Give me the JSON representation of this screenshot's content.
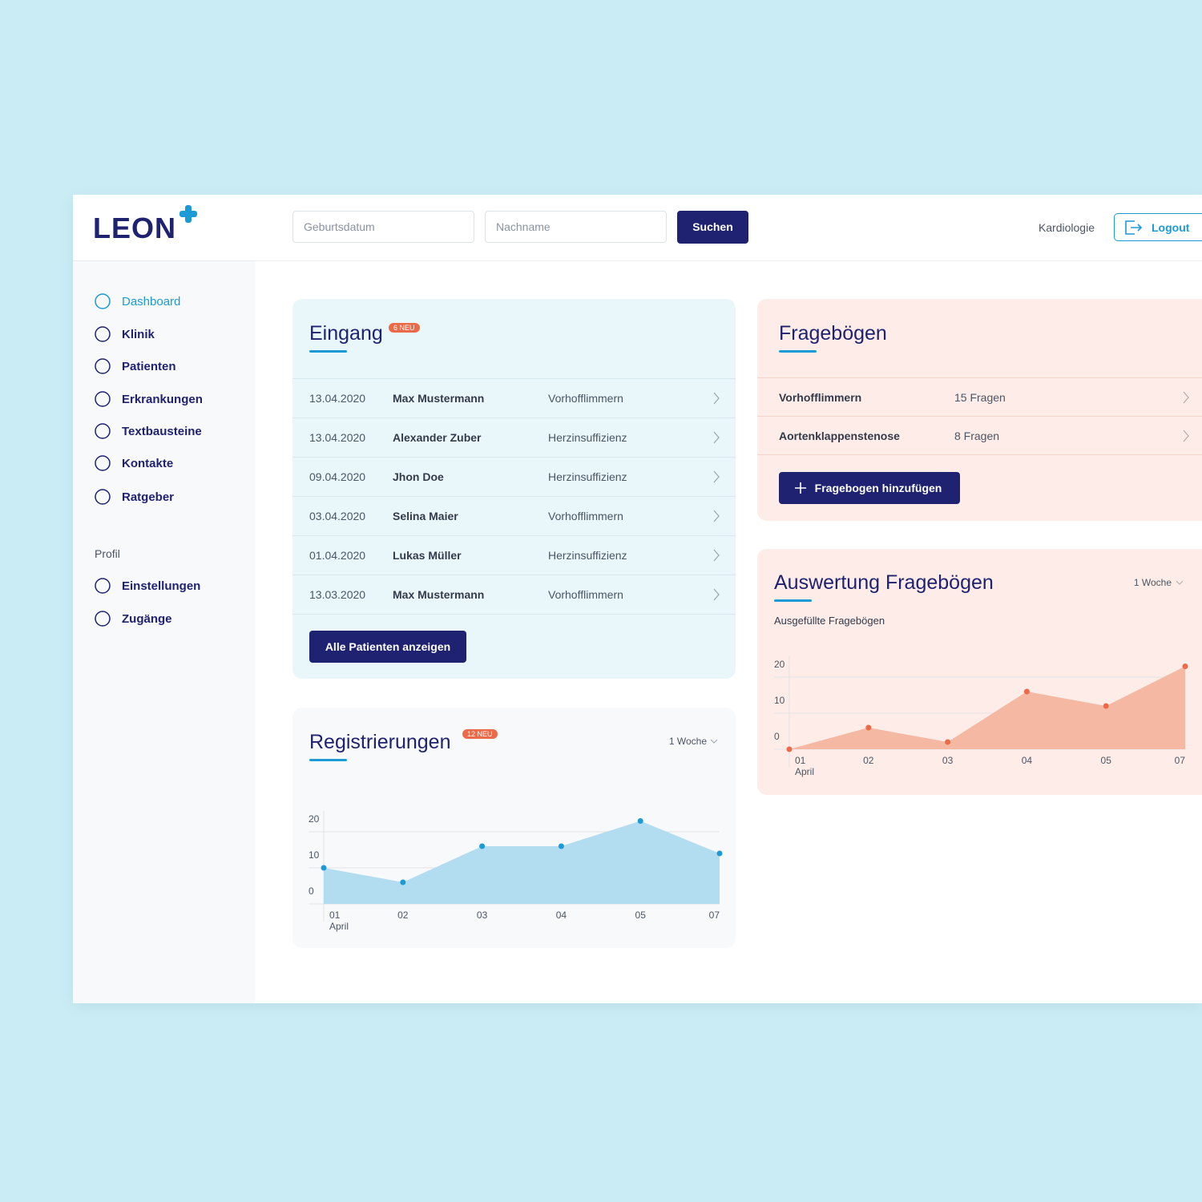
{
  "header": {
    "logo": "LEON",
    "search_fields": [
      "Geburtsdatum",
      "Nachname"
    ],
    "search_button": "Suchen",
    "department": "Kardiologie",
    "logout": "Logout"
  },
  "sidebar": {
    "nav": [
      "Dashboard",
      "Klinik",
      "Patienten",
      "Erkrankungen",
      "Textbausteine",
      "Kontakte",
      "Ratgeber"
    ],
    "profile_heading": "Profil",
    "profile_nav": [
      "Einstellungen",
      "Zugänge"
    ]
  },
  "inbox": {
    "title": "Eingang",
    "badge": "6 NEU",
    "rows": [
      [
        "13.04.2020",
        "Max Mustermann",
        "Vorhofflimmern"
      ],
      [
        "13.04.2020",
        "Alexander Zuber",
        "Herzinsuffizienz"
      ],
      [
        "09.04.2020",
        "Jhon Doe",
        "Herzinsuffizienz"
      ],
      [
        "03.04.2020",
        "Selina Maier",
        "Vorhofflimmern"
      ],
      [
        "01.04.2020",
        "Lukas Müller",
        "Herzinsuffizienz"
      ],
      [
        "13.03.2020",
        "Max Mustermann",
        "Vorhofflimmern"
      ]
    ],
    "button": "Alle Patienten anzeigen"
  },
  "questionnaires": {
    "title": "Fragebögen",
    "rows": [
      [
        "Vorhofflimmern",
        "15 Fragen"
      ],
      [
        "Aortenklappenstenose",
        "8 Fragen"
      ]
    ],
    "button": "Fragebogen hinzufügen"
  },
  "chart_data": [
    {
      "type": "area",
      "title": "Registrierungen",
      "badge": "12 NEU",
      "period": "1 Woche",
      "categories": [
        "01",
        "02",
        "03",
        "04",
        "05",
        "07"
      ],
      "xlabel": "April",
      "values": [
        10,
        6,
        16,
        16,
        23,
        14
      ],
      "color": "#1b9ad6",
      "fill": "#b2dcef",
      "ylim": [
        0,
        24
      ],
      "yticks": [
        0,
        10,
        20
      ],
      "grid": true
    },
    {
      "type": "area",
      "title": "Auswertung Fragebögen",
      "period": "1 Woche",
      "subtitle": "Ausgefüllte Fragebögen",
      "categories": [
        "01",
        "02",
        "03",
        "04",
        "05",
        "07"
      ],
      "xlabel": "April",
      "values": [
        0,
        6,
        2,
        16,
        12,
        23
      ],
      "color": "#ec6a47",
      "fill": "#f5b8a3",
      "ylim": [
        0,
        24
      ],
      "yticks": [
        0,
        10,
        20
      ],
      "grid": true
    }
  ]
}
